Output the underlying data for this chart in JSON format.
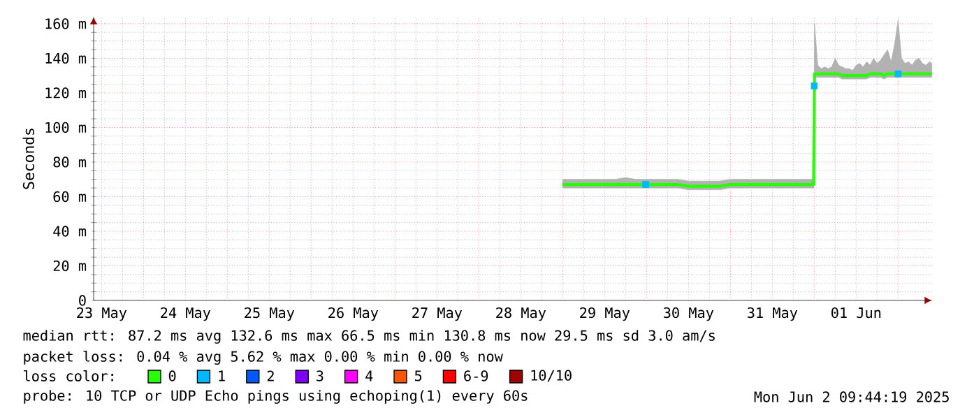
{
  "chart_data": {
    "type": "line",
    "ylabel": "Seconds",
    "legend_title": "loss color:",
    "legend": "bottom",
    "grid": true,
    "xlim": [
      "2025-05-23T09:44",
      "2025-06-02T09:44"
    ],
    "xticks": [
      {
        "value": "2025-05-23T12:00",
        "label": "23 May"
      },
      {
        "value": "2025-05-24T12:00",
        "label": "24 May"
      },
      {
        "value": "2025-05-25T12:00",
        "label": "25 May"
      },
      {
        "value": "2025-05-26T12:00",
        "label": "26 May"
      },
      {
        "value": "2025-05-27T12:00",
        "label": "27 May"
      },
      {
        "value": "2025-05-28T12:00",
        "label": "28 May"
      },
      {
        "value": "2025-05-29T12:00",
        "label": "29 May"
      },
      {
        "value": "2025-05-30T12:00",
        "label": "30 May"
      },
      {
        "value": "2025-05-31T12:00",
        "label": "31 May"
      },
      {
        "value": "2025-06-01T12:00",
        "label": "01 Jun"
      },
      {
        "value": "2025-05-24T00:00",
        "label": null
      },
      {
        "value": "2025-05-25T00:00",
        "label": null
      },
      {
        "value": "2025-05-26T00:00",
        "label": null
      },
      {
        "value": "2025-05-27T00:00",
        "label": null
      },
      {
        "value": "2025-05-28T00:00",
        "label": null
      },
      {
        "value": "2025-05-29T00:00",
        "label": null
      },
      {
        "value": "2025-05-30T00:00",
        "label": null
      },
      {
        "value": "2025-05-31T00:00",
        "label": null
      },
      {
        "value": "2025-06-01T00:00",
        "label": null
      },
      {
        "value": "2025-06-02T00:00",
        "label": null
      }
    ],
    "ylim": [
      0,
      164
    ],
    "yticks": [
      {
        "value": 0,
        "label": "0"
      },
      {
        "value": 20,
        "label": "20 m"
      },
      {
        "value": 40,
        "label": "40 m"
      },
      {
        "value": 60,
        "label": "60 m"
      },
      {
        "value": 80,
        "label": "80 m"
      },
      {
        "value": 100,
        "label": "100 m"
      },
      {
        "value": 120,
        "label": "120 m"
      },
      {
        "value": 140,
        "label": "140 m"
      },
      {
        "value": 160,
        "label": "160 m"
      }
    ],
    "series": [
      {
        "name": "0",
        "color": "#26ff00",
        "x": [
          "2025-05-29T00:00",
          "2025-05-29T03:00",
          "2025-05-29T06:00",
          "2025-05-29T09:00",
          "2025-05-29T12:00",
          "2025-05-29T15:00",
          "2025-05-29T18:00",
          "2025-05-29T21:00",
          "2025-05-30T00:00",
          "2025-05-30T03:00",
          "2025-05-30T06:00",
          "2025-05-30T09:00",
          "2025-05-30T12:00",
          "2025-05-30T15:00",
          "2025-05-30T18:00",
          "2025-05-30T21:00",
          "2025-05-31T00:00",
          "2025-05-31T03:00",
          "2025-05-31T06:00",
          "2025-05-31T09:00",
          "2025-05-31T12:00",
          "2025-05-31T15:00",
          "2025-05-31T18:00",
          "2025-05-31T21:00",
          "2025-05-31T23:50",
          "2025-06-01T00:05",
          "2025-06-01T01:00",
          "2025-06-01T02:00",
          "2025-06-01T03:00",
          "2025-06-01T04:00",
          "2025-06-01T05:00",
          "2025-06-01T06:00",
          "2025-06-01T07:00",
          "2025-06-01T08:00",
          "2025-06-01T09:00",
          "2025-06-01T10:00",
          "2025-06-01T11:00",
          "2025-06-01T12:00",
          "2025-06-01T13:00",
          "2025-06-01T14:00",
          "2025-06-01T15:00",
          "2025-06-01T16:00",
          "2025-06-01T17:00",
          "2025-06-01T18:00",
          "2025-06-01T19:00",
          "2025-06-01T20:00",
          "2025-06-01T21:00",
          "2025-06-01T22:00",
          "2025-06-01T23:00",
          "2025-06-02T00:00",
          "2025-06-02T01:00",
          "2025-06-02T02:00",
          "2025-06-02T03:00",
          "2025-06-02T04:00",
          "2025-06-02T05:00",
          "2025-06-02T06:00",
          "2025-06-02T07:00",
          "2025-06-02T08:00",
          "2025-06-02T09:00",
          "2025-06-02T09:40"
        ],
        "values": [
          67,
          67,
          67,
          67,
          67,
          67,
          67,
          67,
          67,
          67,
          67,
          67,
          66,
          66,
          66,
          66,
          67,
          67,
          67,
          67,
          67,
          67,
          67,
          67,
          67,
          131,
          131,
          131,
          131,
          131,
          131,
          131,
          131,
          130,
          130,
          130,
          130,
          130,
          130,
          130,
          130,
          131,
          131,
          131,
          131,
          130,
          131,
          131,
          131,
          131,
          131,
          131,
          131,
          131,
          131,
          131,
          131,
          131,
          131,
          131
        ],
        "lower": [
          65,
          65,
          65,
          65,
          65,
          65,
          65,
          65,
          65,
          65,
          65,
          65,
          64,
          64,
          64,
          64,
          65,
          65,
          65,
          65,
          65,
          65,
          65,
          65,
          65,
          129,
          129,
          129,
          129,
          129,
          129,
          129,
          129,
          128,
          128,
          128,
          128,
          128,
          128,
          128,
          128,
          129,
          129,
          129,
          129,
          128,
          129,
          129,
          129,
          129,
          129,
          129,
          129,
          129,
          129,
          129,
          129,
          129,
          129,
          129
        ],
        "upper": [
          70,
          70,
          70,
          70,
          70,
          70,
          71,
          70,
          70,
          70,
          70,
          70,
          69,
          69,
          69,
          69,
          70,
          70,
          70,
          70,
          70,
          70,
          70,
          70,
          70,
          160,
          136,
          134,
          135,
          134,
          135,
          140,
          136,
          135,
          134,
          134,
          133,
          136,
          137,
          135,
          138,
          136,
          140,
          137,
          139,
          142,
          145,
          138,
          148,
          162,
          140,
          137,
          138,
          136,
          139,
          140,
          137,
          136,
          138,
          137
        ]
      },
      {
        "name": "1",
        "color": "#00b8ff",
        "type": "scatter",
        "marker": "square",
        "x": [
          "2025-05-29T23:45",
          "2025-06-01T00:00",
          "2025-06-02T00:00"
        ],
        "values": [
          67,
          124,
          131
        ]
      },
      {
        "name": "2",
        "color": "#0059ff"
      },
      {
        "name": "3",
        "color": "#7e00ff"
      },
      {
        "name": "4",
        "color": "#ff00ff"
      },
      {
        "name": "5",
        "color": "#ff5500"
      },
      {
        "name": "6-9",
        "color": "#ff0000"
      },
      {
        "name": "10/10",
        "color": "#a10000"
      }
    ],
    "annotations": [
      "median rtt:  87.2 ms avg  132.6 ms max  66.5 ms min  130.8 ms now  29.5 ms sd  3.0   am/s",
      "packet loss: 0.04 % avg  5.62 % max  0.00 % min  0.00 % now",
      "probe:       10 TCP or UDP Echo pings using echoping(1) every 60s",
      "Mon Jun  2 09:44:19 2025"
    ]
  }
}
